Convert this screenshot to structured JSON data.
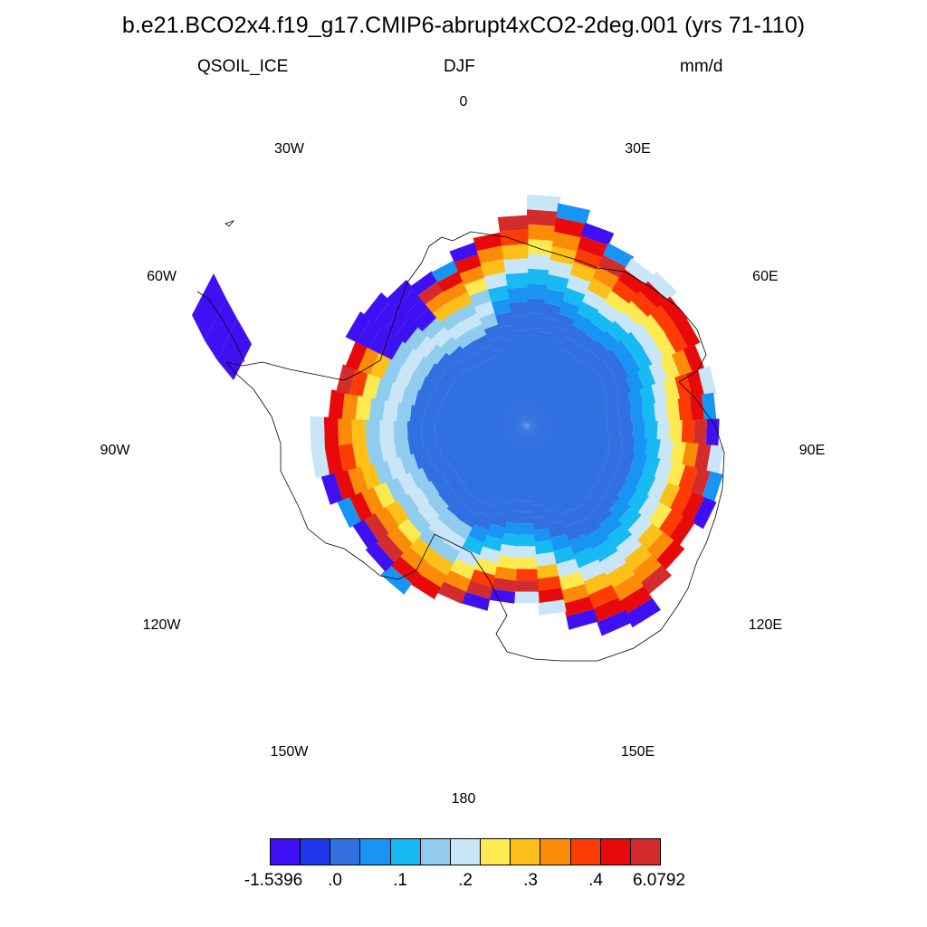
{
  "title": "b.e21.BCO2x4.f19_g17.CMIP6-abrupt4xCO2-2deg.001 (yrs 71-110)",
  "subtitle": {
    "variable": "QSOIL_ICE",
    "season": "DJF",
    "units": "mm/d"
  },
  "longitude_labels": [
    {
      "id": "0",
      "text": "0",
      "angle_deg": 0
    },
    {
      "id": "30e",
      "text": "30E",
      "angle_deg": 30
    },
    {
      "id": "60e",
      "text": "60E",
      "angle_deg": 60
    },
    {
      "id": "90e",
      "text": "90E",
      "angle_deg": 90
    },
    {
      "id": "120e",
      "text": "120E",
      "angle_deg": 120
    },
    {
      "id": "150e",
      "text": "150E",
      "angle_deg": 150
    },
    {
      "id": "180",
      "text": "180",
      "angle_deg": 180
    },
    {
      "id": "150w",
      "text": "150W",
      "angle_deg": 210
    },
    {
      "id": "120w",
      "text": "120W",
      "angle_deg": 240
    },
    {
      "id": "90w",
      "text": "90W",
      "angle_deg": 270
    },
    {
      "id": "60w",
      "text": "60W",
      "angle_deg": 300
    },
    {
      "id": "30w",
      "text": "30W",
      "angle_deg": 330
    }
  ],
  "colorbar": {
    "colors": [
      "#4010f4",
      "#2038ec",
      "#3070e0",
      "#1894f4",
      "#18baf4",
      "#90ccee",
      "#c8e6f8",
      "#fcea50",
      "#fcc018",
      "#fc8c08",
      "#fc3c04",
      "#e80a0a",
      "#d42c2c"
    ],
    "labels": [
      {
        "text": "-1.5396",
        "boundary": 0
      },
      {
        "text": ".0",
        "boundary": 1
      },
      {
        "text": ".1",
        "boundary": 2
      },
      {
        "text": ".2",
        "boundary": 3
      },
      {
        "text": ".3",
        "boundary": 4
      },
      {
        "text": ".4",
        "boundary": 5
      },
      {
        "text": "6.0792",
        "boundary": 6
      }
    ]
  }
}
